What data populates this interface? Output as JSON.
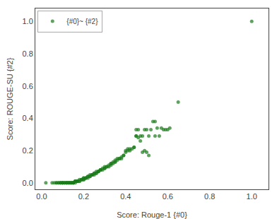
{
  "chart_data": {
    "type": "scatter",
    "xlabel": "Score: Rouge-1 {#0}",
    "ylabel": "Score: ROUGE-SU {#2}",
    "series": [
      {
        "name": "{#0}~ {#2}",
        "color": "#1a7a1a",
        "x": [
          0.02,
          0.05,
          0.06,
          0.07,
          0.07,
          0.08,
          0.08,
          0.09,
          0.09,
          0.09,
          0.1,
          0.1,
          0.1,
          0.1,
          0.11,
          0.11,
          0.11,
          0.12,
          0.12,
          0.12,
          0.12,
          0.13,
          0.13,
          0.13,
          0.13,
          0.14,
          0.14,
          0.14,
          0.14,
          0.15,
          0.15,
          0.15,
          0.15,
          0.15,
          0.16,
          0.16,
          0.16,
          0.16,
          0.17,
          0.17,
          0.17,
          0.17,
          0.18,
          0.18,
          0.18,
          0.19,
          0.19,
          0.19,
          0.2,
          0.2,
          0.2,
          0.2,
          0.21,
          0.21,
          0.21,
          0.22,
          0.22,
          0.22,
          0.23,
          0.23,
          0.23,
          0.24,
          0.24,
          0.24,
          0.25,
          0.25,
          0.25,
          0.26,
          0.26,
          0.26,
          0.27,
          0.27,
          0.27,
          0.28,
          0.28,
          0.28,
          0.29,
          0.29,
          0.3,
          0.3,
          0.3,
          0.31,
          0.31,
          0.32,
          0.32,
          0.33,
          0.33,
          0.33,
          0.34,
          0.34,
          0.35,
          0.35,
          0.35,
          0.36,
          0.36,
          0.37,
          0.37,
          0.38,
          0.38,
          0.39,
          0.39,
          0.4,
          0.4,
          0.41,
          0.41,
          0.42,
          0.42,
          0.43,
          0.44,
          0.44,
          0.45,
          0.45,
          0.45,
          0.46,
          0.46,
          0.47,
          0.47,
          0.48,
          0.48,
          0.49,
          0.49,
          0.5,
          0.5,
          0.51,
          0.51,
          0.52,
          0.53,
          0.54,
          0.54,
          0.55,
          0.56,
          0.57,
          0.58,
          0.59,
          0.6,
          0.61,
          0.65,
          1.0
        ],
        "values": [
          0.0,
          0.0,
          0.0,
          0.0,
          0.0,
          0.0,
          0.0,
          0.0,
          0.0,
          0.0,
          0.0,
          0.0,
          0.0,
          0.0,
          0.0,
          0.0,
          0.0,
          0.0,
          0.0,
          0.0,
          0.0,
          0.0,
          0.0,
          0.0,
          0.0,
          0.0,
          0.0,
          0.0,
          0.0,
          0.0,
          0.0,
          0.0,
          0.0,
          0.0,
          0.0,
          0.01,
          0.01,
          0.01,
          0.01,
          0.01,
          0.01,
          0.01,
          0.01,
          0.01,
          0.02,
          0.02,
          0.02,
          0.02,
          0.02,
          0.02,
          0.03,
          0.03,
          0.03,
          0.03,
          0.03,
          0.03,
          0.04,
          0.04,
          0.04,
          0.04,
          0.05,
          0.05,
          0.05,
          0.05,
          0.05,
          0.06,
          0.06,
          0.06,
          0.06,
          0.07,
          0.07,
          0.07,
          0.07,
          0.08,
          0.08,
          0.08,
          0.08,
          0.09,
          0.09,
          0.09,
          0.1,
          0.1,
          0.1,
          0.1,
          0.11,
          0.11,
          0.12,
          0.12,
          0.12,
          0.13,
          0.13,
          0.13,
          0.14,
          0.14,
          0.15,
          0.15,
          0.15,
          0.15,
          0.16,
          0.17,
          0.17,
          0.19,
          0.2,
          0.2,
          0.21,
          0.2,
          0.21,
          0.21,
          0.22,
          0.22,
          0.29,
          0.29,
          0.33,
          0.28,
          0.33,
          0.26,
          0.29,
          0.19,
          0.29,
          0.2,
          0.33,
          0.19,
          0.33,
          0.17,
          0.29,
          0.33,
          0.38,
          0.29,
          0.38,
          0.34,
          0.29,
          0.34,
          0.33,
          0.33,
          0.33,
          0.34,
          0.5,
          1.0
        ]
      }
    ],
    "xlim": [
      -0.03,
      1.08
    ],
    "ylim": [
      -0.04,
      1.08
    ],
    "xticks": [
      {
        "value": 0,
        "label": "0.0"
      },
      0.2,
      0.4,
      0.6,
      0.8,
      {
        "value": 1,
        "label": "1.0"
      }
    ],
    "yticks": [
      {
        "value": 0,
        "label": "0.0"
      },
      0.2,
      0.4,
      0.6,
      0.8,
      {
        "value": 1,
        "label": "1.0"
      }
    ],
    "grid": false,
    "legend": "upper left"
  }
}
